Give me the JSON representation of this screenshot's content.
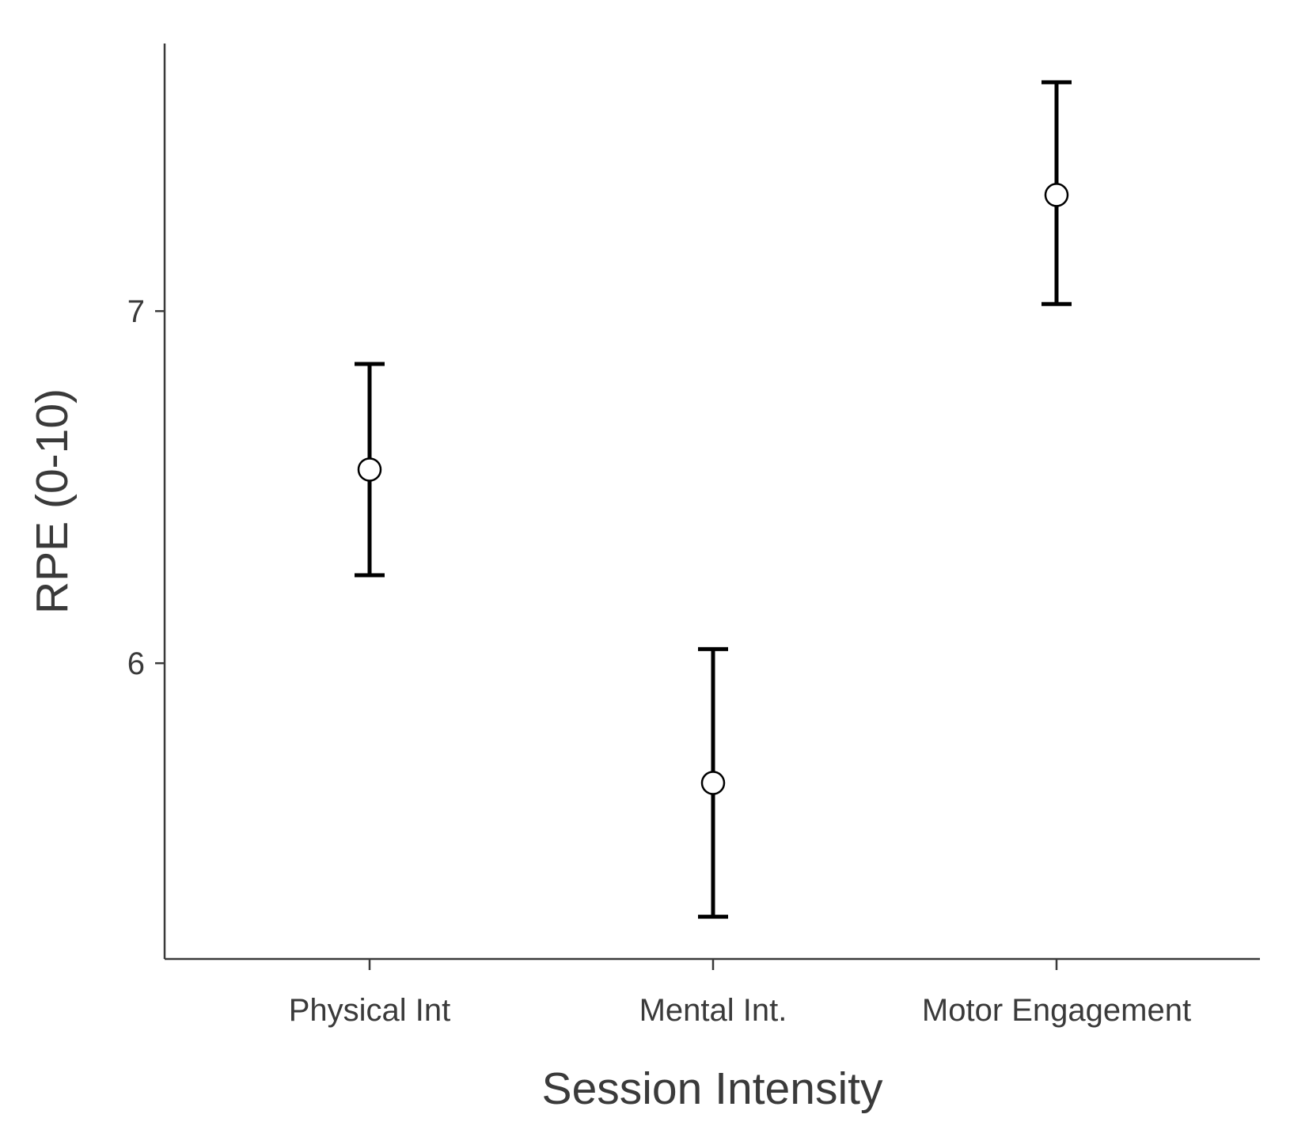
{
  "chart_data": {
    "type": "scatter",
    "title": "",
    "xlabel": "Session Intensity",
    "ylabel": "RPE (0-10)",
    "categories": [
      "Physical Int",
      "Mental Int.",
      "Motor Engagement"
    ],
    "series": [
      {
        "values": [
          6.55,
          5.66,
          7.33
        ],
        "error_low": [
          6.25,
          5.28,
          7.02
        ],
        "error_high": [
          6.85,
          6.04,
          7.65
        ]
      }
    ],
    "y_ticks": [
      6,
      7
    ],
    "ylim": [
      5.16,
      7.76
    ],
    "grid": false,
    "legend": "none"
  }
}
